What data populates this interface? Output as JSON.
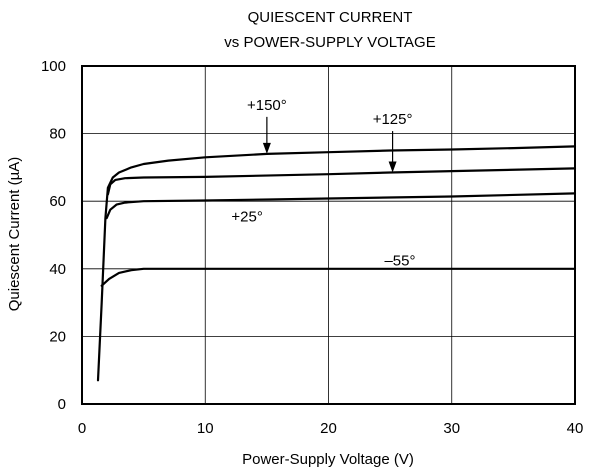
{
  "chart_data": {
    "type": "line",
    "title": "QUIESCENT CURRENT",
    "subtitle": "vs POWER-SUPPLY VOLTAGE",
    "xlabel": "Power-Supply Voltage (V)",
    "ylabel": "Quiescent Current (µA)",
    "xlim": [
      0,
      40
    ],
    "ylim": [
      0,
      100
    ],
    "x_ticks": [
      0,
      10,
      20,
      30,
      40
    ],
    "y_ticks": [
      0,
      20,
      40,
      60,
      80,
      100
    ],
    "x_tick_labels": [
      "0",
      "10",
      "20",
      "30",
      "40"
    ],
    "y_tick_labels": [
      "0",
      "20",
      "40",
      "60",
      "80",
      "100"
    ],
    "grid": true,
    "legend": "none",
    "series": [
      {
        "name": "+150°",
        "x": [
          1.3,
          1.6,
          1.9,
          2.1,
          2.5,
          3,
          4,
          5,
          7,
          10,
          15,
          20,
          25,
          30,
          35,
          40
        ],
        "y": [
          7,
          30,
          55,
          64,
          67,
          68.5,
          70,
          71,
          72,
          73,
          74,
          74.5,
          75,
          75.3,
          75.7,
          76.2
        ]
      },
      {
        "name": "+125°",
        "x": [
          2.1,
          2.3,
          2.7,
          3.5,
          5,
          10,
          20,
          25,
          30,
          40
        ],
        "y": [
          62,
          65,
          66.3,
          66.8,
          67,
          67.2,
          68,
          68.5,
          68.9,
          69.7
        ]
      },
      {
        "name": "+25°",
        "x": [
          2.0,
          2.3,
          2.8,
          3.5,
          5,
          10,
          20,
          30,
          40
        ],
        "y": [
          55,
          57.5,
          59,
          59.6,
          60,
          60.2,
          60.8,
          61.4,
          62.3
        ]
      },
      {
        "name": "–55°",
        "x": [
          1.6,
          2.2,
          3,
          4,
          5,
          10,
          20,
          30,
          40
        ],
        "y": [
          35,
          37,
          38.8,
          39.6,
          40,
          40,
          40,
          40,
          40
        ]
      }
    ],
    "annotations": [
      {
        "text": "+150°",
        "series": "+150°",
        "label_x": 15.0,
        "label_y": 88.5,
        "arrow_to": [
          15.0,
          74
        ]
      },
      {
        "text": "+125°",
        "series": "+125°",
        "label_x": 25.2,
        "label_y": 84.3,
        "arrow_to": [
          25.2,
          68.5
        ]
      },
      {
        "text": "+25°",
        "series": "+25°",
        "label_x": 13.4,
        "label_y": 55.5
      },
      {
        "text": "–55°",
        "series": "–55°",
        "label_x": 25.8,
        "label_y": 42.5
      }
    ]
  }
}
